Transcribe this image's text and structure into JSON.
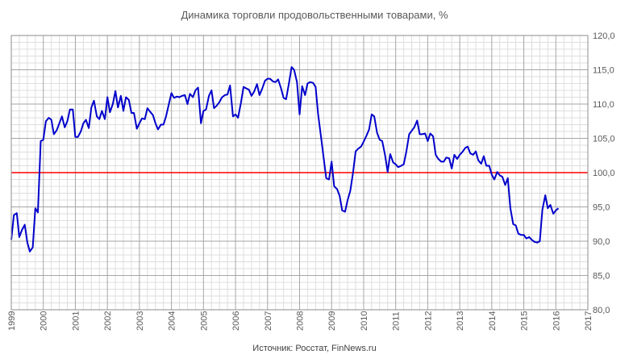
{
  "chart_data": {
    "type": "line",
    "title": "Динамика торговли продовольственными товарами, %",
    "source": "Источник: Росстат, FinNews.ru",
    "xlabel": "",
    "ylabel": "",
    "x_range": [
      1999,
      2017
    ],
    "y_range": [
      80,
      120
    ],
    "x_ticks": [
      "1999",
      "2000",
      "2001",
      "2002",
      "2003",
      "2004",
      "2005",
      "2006",
      "2007",
      "2008",
      "2009",
      "2010",
      "2011",
      "2012",
      "2013",
      "2014",
      "2015",
      "2016",
      "2017"
    ],
    "y_ticks": [
      "80,0",
      "85,0",
      "90,0",
      "95,0",
      "100,0",
      "105,0",
      "110,0",
      "115,0",
      "120,0"
    ],
    "grid": true,
    "reference_line": {
      "value": 100,
      "color": "#ff0000"
    },
    "series": [
      {
        "color": "#0000cc",
        "points": [
          [
            1999.0,
            90.2
          ],
          [
            1999.08,
            93.8
          ],
          [
            1999.17,
            94.1
          ],
          [
            1999.25,
            90.6
          ],
          [
            1999.33,
            91.6
          ],
          [
            1999.42,
            92.4
          ],
          [
            1999.5,
            89.8
          ],
          [
            1999.58,
            88.5
          ],
          [
            1999.67,
            89.1
          ],
          [
            1999.75,
            94.8
          ],
          [
            1999.83,
            94.2
          ],
          [
            1999.92,
            104.6
          ],
          [
            2000.0,
            104.8
          ],
          [
            2000.08,
            107.5
          ],
          [
            2000.17,
            108.0
          ],
          [
            2000.25,
            107.7
          ],
          [
            2000.33,
            105.6
          ],
          [
            2000.42,
            106.2
          ],
          [
            2000.5,
            107.2
          ],
          [
            2000.58,
            108.2
          ],
          [
            2000.67,
            106.6
          ],
          [
            2000.75,
            107.5
          ],
          [
            2000.83,
            109.2
          ],
          [
            2000.92,
            109.2
          ],
          [
            2001.0,
            105.2
          ],
          [
            2001.08,
            105.2
          ],
          [
            2001.17,
            106.0
          ],
          [
            2001.25,
            107.2
          ],
          [
            2001.33,
            107.7
          ],
          [
            2001.42,
            106.5
          ],
          [
            2001.5,
            109.5
          ],
          [
            2001.58,
            110.5
          ],
          [
            2001.67,
            108.2
          ],
          [
            2001.75,
            107.8
          ],
          [
            2001.83,
            109.0
          ],
          [
            2001.92,
            107.8
          ],
          [
            2002.0,
            111.0
          ],
          [
            2002.08,
            108.8
          ],
          [
            2002.17,
            110.0
          ],
          [
            2002.25,
            111.9
          ],
          [
            2002.33,
            109.5
          ],
          [
            2002.42,
            111.2
          ],
          [
            2002.5,
            109.0
          ],
          [
            2002.58,
            111.0
          ],
          [
            2002.67,
            110.6
          ],
          [
            2002.75,
            108.7
          ],
          [
            2002.83,
            108.7
          ],
          [
            2002.92,
            106.4
          ],
          [
            2003.0,
            107.2
          ],
          [
            2003.08,
            107.9
          ],
          [
            2003.17,
            107.8
          ],
          [
            2003.25,
            109.4
          ],
          [
            2003.33,
            108.9
          ],
          [
            2003.42,
            108.4
          ],
          [
            2003.5,
            107.2
          ],
          [
            2003.58,
            106.3
          ],
          [
            2003.67,
            107.0
          ],
          [
            2003.75,
            107.0
          ],
          [
            2003.83,
            108.2
          ],
          [
            2003.92,
            110.0
          ],
          [
            2004.0,
            111.6
          ],
          [
            2004.08,
            110.9
          ],
          [
            2004.17,
            111.1
          ],
          [
            2004.25,
            111.0
          ],
          [
            2004.33,
            111.2
          ],
          [
            2004.42,
            111.3
          ],
          [
            2004.5,
            110.0
          ],
          [
            2004.58,
            111.5
          ],
          [
            2004.67,
            111.0
          ],
          [
            2004.75,
            112.0
          ],
          [
            2004.83,
            112.4
          ],
          [
            2004.92,
            107.2
          ],
          [
            2005.0,
            109.0
          ],
          [
            2005.08,
            109.2
          ],
          [
            2005.17,
            111.2
          ],
          [
            2005.25,
            112.0
          ],
          [
            2005.33,
            109.4
          ],
          [
            2005.42,
            109.8
          ],
          [
            2005.5,
            110.3
          ],
          [
            2005.58,
            111.0
          ],
          [
            2005.67,
            111.3
          ],
          [
            2005.75,
            111.4
          ],
          [
            2005.83,
            112.7
          ],
          [
            2005.92,
            108.2
          ],
          [
            2006.0,
            108.5
          ],
          [
            2006.08,
            108.0
          ],
          [
            2006.17,
            110.2
          ],
          [
            2006.25,
            112.5
          ],
          [
            2006.33,
            112.3
          ],
          [
            2006.42,
            112.1
          ],
          [
            2006.5,
            111.2
          ],
          [
            2006.58,
            111.8
          ],
          [
            2006.67,
            112.9
          ],
          [
            2006.75,
            111.3
          ],
          [
            2006.83,
            112.2
          ],
          [
            2006.92,
            113.4
          ],
          [
            2007.0,
            113.7
          ],
          [
            2007.08,
            113.7
          ],
          [
            2007.17,
            113.3
          ],
          [
            2007.25,
            113.2
          ],
          [
            2007.33,
            113.6
          ],
          [
            2007.42,
            112.3
          ],
          [
            2007.5,
            110.9
          ],
          [
            2007.58,
            110.7
          ],
          [
            2007.67,
            113.1
          ],
          [
            2007.75,
            115.4
          ],
          [
            2007.83,
            115.0
          ],
          [
            2007.92,
            113.2
          ],
          [
            2008.0,
            108.5
          ],
          [
            2008.08,
            112.6
          ],
          [
            2008.17,
            111.3
          ],
          [
            2008.25,
            113.0
          ],
          [
            2008.33,
            113.2
          ],
          [
            2008.42,
            113.1
          ],
          [
            2008.5,
            112.5
          ],
          [
            2008.58,
            108.5
          ],
          [
            2008.67,
            105.2
          ],
          [
            2008.75,
            102.2
          ],
          [
            2008.83,
            99.2
          ],
          [
            2008.92,
            99.0
          ],
          [
            2009.0,
            101.6
          ],
          [
            2009.08,
            98.0
          ],
          [
            2009.17,
            97.6
          ],
          [
            2009.25,
            96.6
          ],
          [
            2009.33,
            94.5
          ],
          [
            2009.42,
            94.3
          ],
          [
            2009.5,
            96.0
          ],
          [
            2009.58,
            97.3
          ],
          [
            2009.67,
            100.0
          ],
          [
            2009.75,
            103.1
          ],
          [
            2009.83,
            103.5
          ],
          [
            2009.92,
            103.8
          ],
          [
            2010.0,
            104.5
          ],
          [
            2010.08,
            105.3
          ],
          [
            2010.17,
            106.3
          ],
          [
            2010.25,
            108.5
          ],
          [
            2010.33,
            108.2
          ],
          [
            2010.42,
            105.8
          ],
          [
            2010.5,
            104.8
          ],
          [
            2010.58,
            104.6
          ],
          [
            2010.67,
            102.5
          ],
          [
            2010.75,
            100.1
          ],
          [
            2010.83,
            102.7
          ],
          [
            2010.92,
            101.5
          ],
          [
            2011.0,
            101.2
          ],
          [
            2011.08,
            100.8
          ],
          [
            2011.17,
            101.0
          ],
          [
            2011.25,
            101.2
          ],
          [
            2011.33,
            103.0
          ],
          [
            2011.42,
            105.6
          ],
          [
            2011.5,
            106.1
          ],
          [
            2011.58,
            106.6
          ],
          [
            2011.67,
            107.6
          ],
          [
            2011.75,
            105.6
          ],
          [
            2011.83,
            105.6
          ],
          [
            2011.92,
            105.7
          ],
          [
            2012.0,
            104.6
          ],
          [
            2012.08,
            105.7
          ],
          [
            2012.17,
            105.3
          ],
          [
            2012.25,
            102.6
          ],
          [
            2012.33,
            102.0
          ],
          [
            2012.42,
            101.6
          ],
          [
            2012.5,
            101.6
          ],
          [
            2012.58,
            102.2
          ],
          [
            2012.67,
            102.1
          ],
          [
            2012.75,
            100.6
          ],
          [
            2012.83,
            102.6
          ],
          [
            2012.92,
            102.0
          ],
          [
            2013.0,
            102.6
          ],
          [
            2013.08,
            103.0
          ],
          [
            2013.17,
            103.6
          ],
          [
            2013.25,
            103.8
          ],
          [
            2013.33,
            102.8
          ],
          [
            2013.42,
            102.6
          ],
          [
            2013.5,
            103.1
          ],
          [
            2013.58,
            101.8
          ],
          [
            2013.67,
            101.3
          ],
          [
            2013.75,
            102.4
          ],
          [
            2013.83,
            101.0
          ],
          [
            2013.92,
            101.0
          ],
          [
            2014.0,
            99.7
          ],
          [
            2014.08,
            99.0
          ],
          [
            2014.17,
            100.1
          ],
          [
            2014.25,
            99.6
          ],
          [
            2014.33,
            99.4
          ],
          [
            2014.42,
            98.2
          ],
          [
            2014.5,
            99.2
          ],
          [
            2014.58,
            94.8
          ],
          [
            2014.67,
            92.5
          ],
          [
            2014.75,
            92.3
          ],
          [
            2014.83,
            91.1
          ],
          [
            2014.92,
            90.9
          ],
          [
            2015.0,
            90.9
          ],
          [
            2015.08,
            90.4
          ],
          [
            2015.17,
            90.6
          ],
          [
            2015.25,
            90.2
          ],
          [
            2015.33,
            89.9
          ],
          [
            2015.42,
            89.8
          ],
          [
            2015.5,
            90.0
          ],
          [
            2015.58,
            94.6
          ],
          [
            2015.67,
            96.7
          ],
          [
            2015.75,
            94.8
          ],
          [
            2015.83,
            95.3
          ],
          [
            2015.92,
            94.0
          ],
          [
            2016.0,
            94.5
          ],
          [
            2016.08,
            94.8
          ]
        ]
      }
    ]
  }
}
